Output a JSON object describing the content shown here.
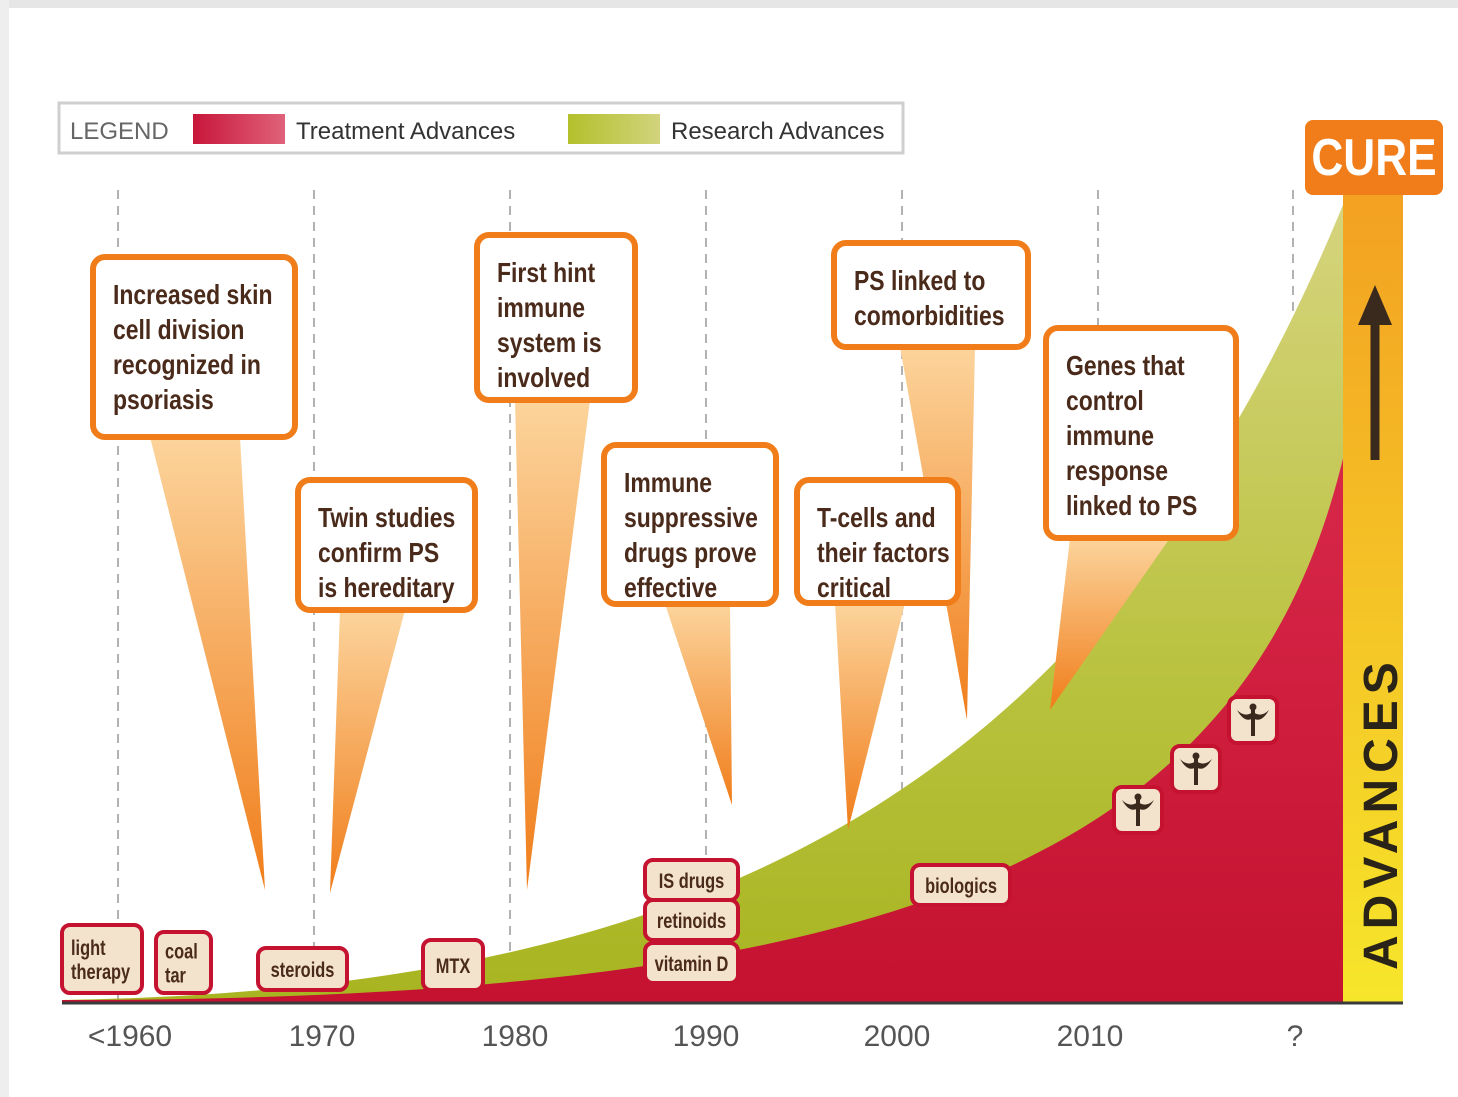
{
  "legend": {
    "title": "LEGEND",
    "items": [
      "Treatment Advances",
      "Research Advances"
    ]
  },
  "goal": "CURE",
  "axis_label": "ADVANCES",
  "timeline": [
    "<1960",
    "1970",
    "1980",
    "1990",
    "2000",
    "2010",
    "?"
  ],
  "research": [
    {
      "lines": [
        "Increased skin",
        "cell division",
        "recognized in",
        "psoriasis"
      ]
    },
    {
      "lines": [
        "Twin studies",
        "confirm PS",
        "is hereditary"
      ]
    },
    {
      "lines": [
        "First hint",
        "immune",
        "system is",
        "involved"
      ]
    },
    {
      "lines": [
        "Immune",
        "suppressive",
        "drugs prove",
        "effective"
      ]
    },
    {
      "lines": [
        "PS linked to",
        "comorbidities"
      ]
    },
    {
      "lines": [
        "T-cells and",
        "their factors",
        "critical"
      ]
    },
    {
      "lines": [
        "Genes that",
        "control",
        "immune",
        "response",
        "linked to PS"
      ]
    }
  ],
  "treatments": [
    {
      "lines": [
        "light",
        "therapy"
      ]
    },
    {
      "lines": [
        "coal",
        "tar"
      ]
    },
    {
      "lines": [
        "steroids"
      ]
    },
    {
      "lines": [
        "MTX"
      ]
    },
    {
      "lines": [
        "IS drugs"
      ]
    },
    {
      "lines": [
        "retinoids"
      ]
    },
    {
      "lines": [
        "vitamin D"
      ]
    },
    {
      "lines": [
        "biologics"
      ]
    }
  ]
}
